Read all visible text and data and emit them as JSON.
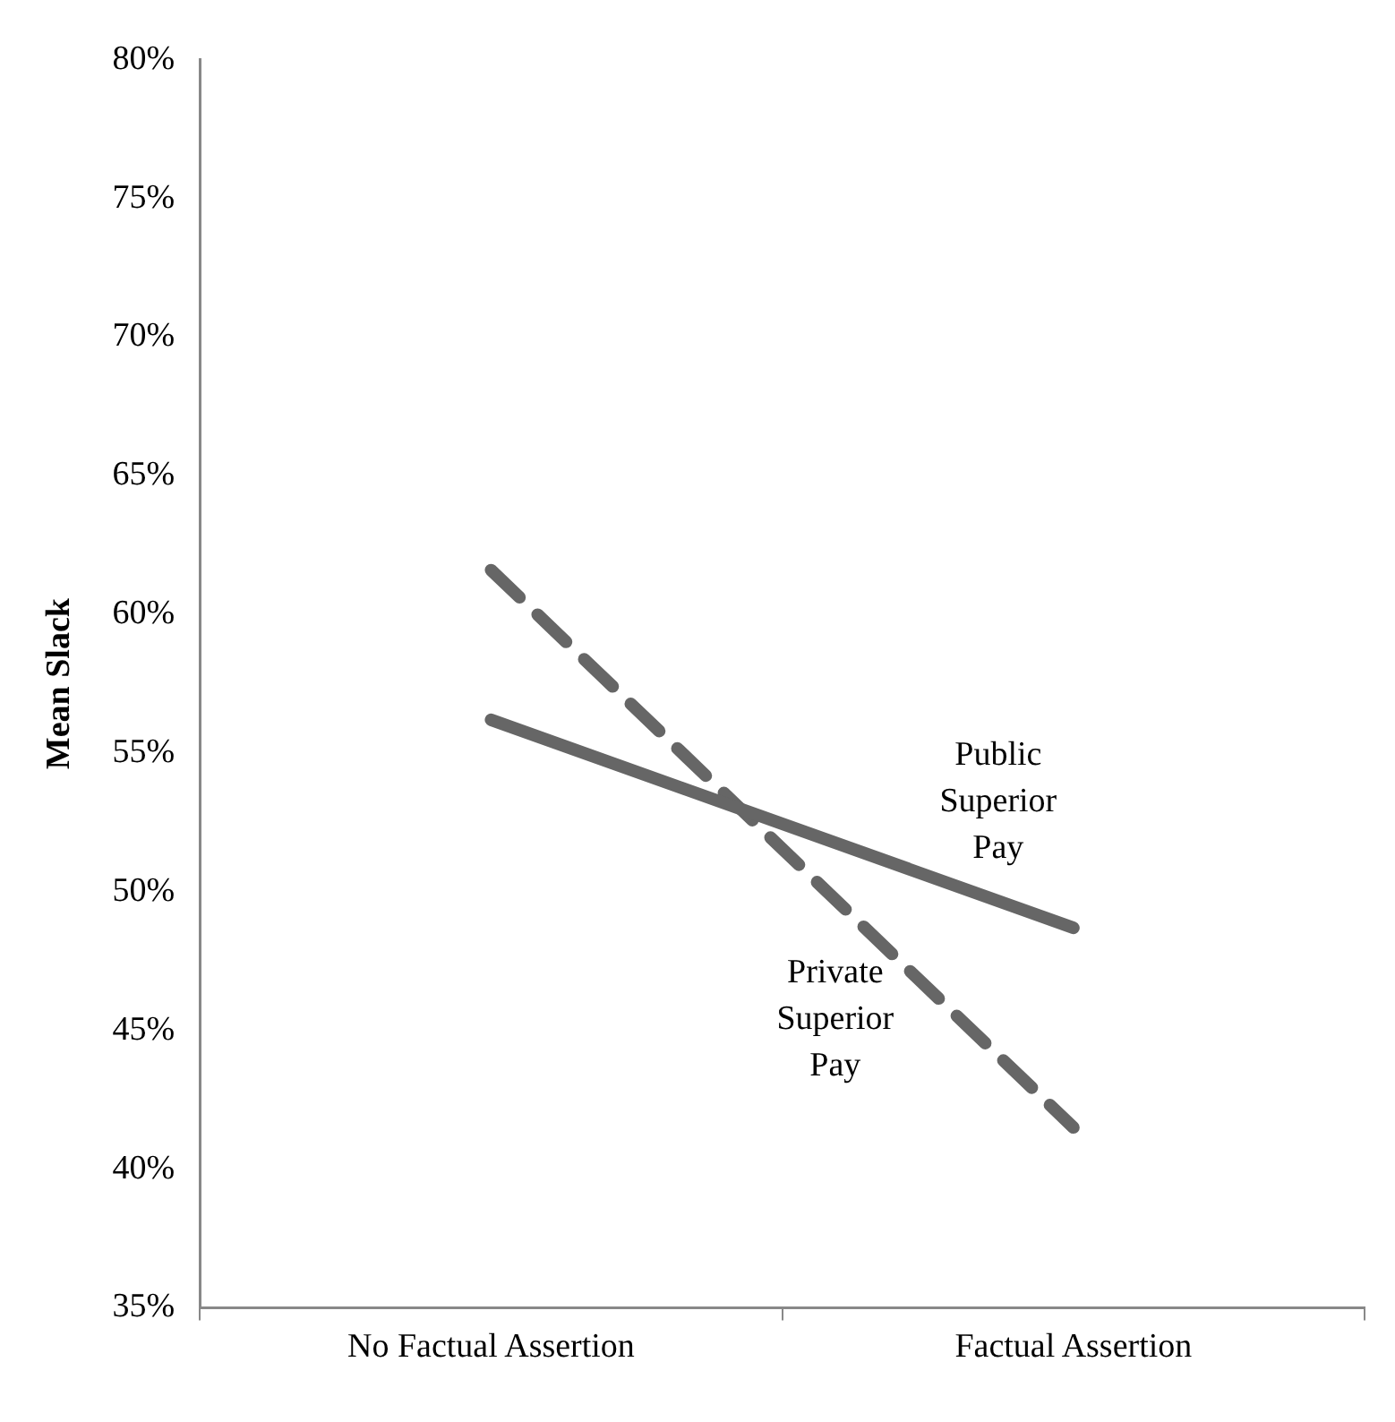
{
  "chart_data": {
    "type": "line",
    "ylabel": "Mean Slack",
    "categories": [
      "No Factual Assertion",
      "Factual Assertion"
    ],
    "series": [
      {
        "name": "Public Superior Pay",
        "color": "#666666",
        "values": [
          56.2,
          48.7
        ],
        "line_style": "solid"
      },
      {
        "name": "Private Superior Pay",
        "color": "#666666",
        "values": [
          61.6,
          41.5
        ],
        "line_style": "dashed"
      }
    ],
    "ylim": [
      35,
      80
    ],
    "yticks": [
      {
        "value": 35,
        "label": "35%"
      },
      {
        "value": 40,
        "label": "40%"
      },
      {
        "value": 45,
        "label": "45%"
      },
      {
        "value": 50,
        "label": "50%"
      },
      {
        "value": 55,
        "label": "55%"
      },
      {
        "value": 60,
        "label": "60%"
      },
      {
        "value": 65,
        "label": "65%"
      },
      {
        "value": 70,
        "label": "70%"
      },
      {
        "value": 75,
        "label": "75%"
      },
      {
        "value": 80,
        "label": "80%"
      }
    ],
    "grid": false,
    "legend": false,
    "marker": "none"
  }
}
